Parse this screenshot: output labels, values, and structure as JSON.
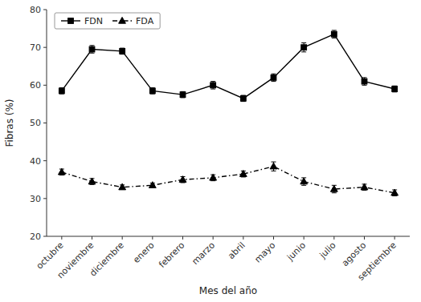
{
  "chart_data": {
    "type": "line",
    "categories": [
      "octubre",
      "noviembre",
      "diciembre",
      "enero",
      "febrero",
      "marzo",
      "abril",
      "mayo",
      "junio",
      "julio",
      "agosto",
      "septiembre"
    ],
    "series": [
      {
        "name": "FDN",
        "color": "#000000",
        "marker": "square",
        "line_style": "solid",
        "values": [
          58.5,
          69.5,
          69.0,
          58.5,
          57.5,
          60.0,
          56.5,
          62.0,
          70.0,
          73.5,
          61.0,
          59.0
        ],
        "errors": [
          0.8,
          1.0,
          0.8,
          0.8,
          0.8,
          1.0,
          0.8,
          1.0,
          1.2,
          1.0,
          1.0,
          0.8
        ]
      },
      {
        "name": "FDA",
        "color": "#000000",
        "marker": "triangle",
        "line_style": "dashdot",
        "values": [
          37.0,
          34.5,
          33.0,
          33.5,
          35.0,
          35.5,
          36.5,
          38.5,
          34.5,
          32.5,
          33.0,
          31.5
        ],
        "errors": [
          0.8,
          0.8,
          0.6,
          0.6,
          0.8,
          0.8,
          0.8,
          1.2,
          1.0,
          1.0,
          0.8,
          0.8
        ]
      }
    ],
    "x_label": "Mes del año",
    "y_label": "Fibras (%)",
    "ylim": [
      20,
      80
    ],
    "yticks": [
      20,
      30,
      40,
      50,
      60,
      70,
      80
    ],
    "legend": "upper left",
    "grid": false
  }
}
